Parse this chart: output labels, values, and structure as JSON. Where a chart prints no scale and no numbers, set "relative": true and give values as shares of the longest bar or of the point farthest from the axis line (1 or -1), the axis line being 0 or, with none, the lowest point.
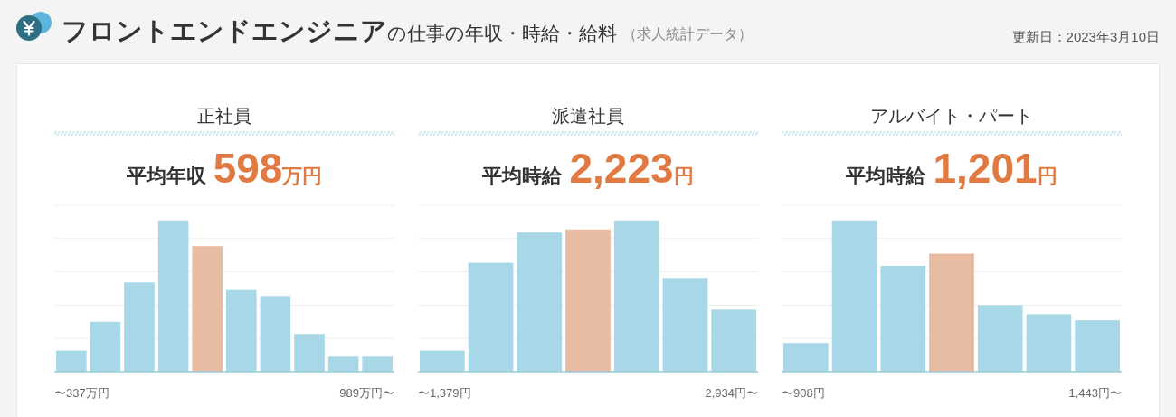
{
  "chart_data": [
    {
      "type": "other",
      "title": "**フロントエンドエンジニア**の仕事の年収・時給・給料",
      "subtitle": "（求人統計データ）",
      "annotations": [
        "更新日：2023年3月10日"
      ]
    },
    {
      "type": "bar",
      "title": "正社員",
      "subtitle": "平均年収**598万円**",
      "categories": [
        "〜337万円",
        null,
        null,
        null,
        null,
        null,
        null,
        null,
        null,
        "989万円〜"
      ],
      "values": [
        0.14,
        0.33,
        0.59,
        1,
        0.83,
        0.54,
        0.5,
        0.25,
        0.1,
        0.1
      ],
      "colors": [
        "#a8d8e8",
        "#a8d8e8",
        "#a8d8e8",
        "#a8d8e8",
        "#e8bba3",
        "#a8d8e8",
        "#a8d8e8",
        "#a8d8e8",
        "#a8d8e8",
        "#a8d8e8"
      ],
      "relative": true,
      "grid": "y"
    },
    {
      "type": "bar",
      "title": "派遣社員",
      "subtitle": "平均時給**2,223円**",
      "categories": [
        "〜1,379円",
        null,
        null,
        null,
        null,
        null,
        "2,934円〜"
      ],
      "values": [
        0.14,
        0.72,
        0.92,
        0.94,
        1,
        0.62,
        0.41
      ],
      "colors": [
        "#a8d8e8",
        "#a8d8e8",
        "#a8d8e8",
        "#e8bba3",
        "#a8d8e8",
        "#a8d8e8",
        "#a8d8e8"
      ],
      "relative": true,
      "grid": "y"
    },
    {
      "type": "bar",
      "title": "アルバイト・パート",
      "subtitle": "平均時給**1,201円**",
      "categories": [
        "〜908円",
        null,
        null,
        null,
        null,
        null,
        "1,443円〜"
      ],
      "values": [
        0.19,
        1,
        0.7,
        0.78,
        0.44,
        0.38,
        0.34
      ],
      "colors": [
        "#a8d8e8",
        "#a8d8e8",
        "#a8d8e8",
        "#e8bba3",
        "#a8d8e8",
        "#a8d8e8",
        "#a8d8e8"
      ],
      "relative": true,
      "grid": "y"
    }
  ]
}
